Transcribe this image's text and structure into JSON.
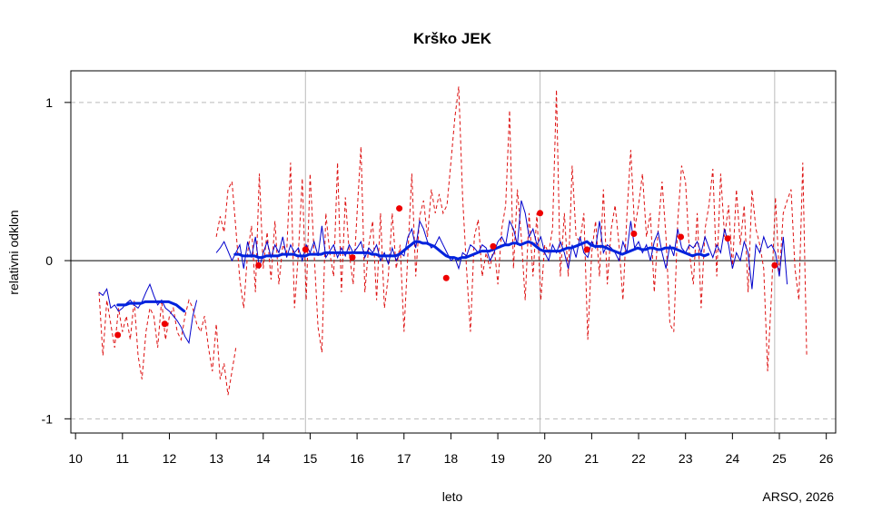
{
  "chart_data": {
    "type": "line",
    "title": "Krško JEK",
    "xlabel": "leto",
    "ylabel": "relativni odklon",
    "credit": "ARSO, 2026",
    "xlim": [
      9.9,
      26.2
    ],
    "ylim": [
      -1.09,
      1.2
    ],
    "x_ticks": [
      10,
      11,
      12,
      13,
      14,
      15,
      16,
      17,
      18,
      19,
      20,
      21,
      22,
      23,
      24,
      25,
      26
    ],
    "y_ticks": [
      -1,
      0,
      1
    ],
    "gridlines_v": [
      14.9,
      19.9,
      24.9
    ],
    "gridlines_h_dashed": [
      -1,
      1
    ],
    "zero_line": 0,
    "colors": {
      "monthly": "#dd1111",
      "smoothed": "#0000cc",
      "moving_avg": "#0022dd",
      "annual": "#ee0000",
      "grid": "#bbbbbb",
      "zero": "#000000"
    },
    "series": [
      {
        "name": "monthly",
        "style": "dashed",
        "segments": [
          {
            "x0": 10.5,
            "dx": 0.0833333,
            "values": [
              -0.2,
              -0.6,
              -0.25,
              -0.4,
              -0.55,
              -0.3,
              -0.45,
              -0.35,
              -0.5,
              -0.25,
              -0.6,
              -0.75,
              -0.45,
              -0.3,
              -0.35,
              -0.55,
              -0.25,
              -0.5,
              -0.35,
              -0.3,
              -0.45,
              -0.5,
              -0.35,
              -0.25,
              -0.3,
              -0.4,
              -0.45,
              -0.35,
              -0.55,
              -0.7,
              -0.4,
              -0.75,
              -0.65,
              -0.85,
              -0.7,
              -0.55
            ]
          },
          {
            "x0": 13.0,
            "dx": 0.0833333,
            "values": [
              0.15,
              0.28,
              0.18,
              0.45,
              0.5,
              0.2,
              -0.12,
              -0.3,
              0.05,
              0.22,
              -0.2,
              0.55,
              -0.05,
              0.18,
              -0.12,
              0.25,
              -0.15,
              0.1,
              0.05,
              0.62,
              -0.3,
              0.05,
              0.52,
              -0.25,
              0.55,
              0.05,
              -0.42,
              -0.58,
              0.3,
              0.05,
              -0.1,
              0.62,
              -0.2,
              0.4,
              0.05,
              -0.15,
              0.3,
              0.72,
              -0.2,
              0.1,
              0.25,
              -0.25,
              0.3,
              -0.3,
              -0.1,
              0.3,
              -0.05,
              0.1,
              -0.45,
              0.05,
              0.55,
              -0.1,
              0.28,
              0.38,
              0.15,
              0.45,
              0.3,
              0.42,
              0.3,
              0.35,
              0.62,
              0.9,
              1.1,
              0.4,
              -0.05,
              -0.45,
              0.15,
              0.26,
              -0.1,
              0.05,
              -0.05,
              0.1,
              -0.15,
              0.2,
              0.35,
              0.95,
              -0.05,
              0.45,
              0.15,
              -0.25,
              0.3,
              -0.1,
              0.3,
              -0.25,
              0.1,
              0.05,
              0.2,
              1.08,
              -0.1,
              0.3,
              -0.1,
              0.6,
              0.15,
              0.12,
              0.3,
              -0.5,
              0.05,
              0.25,
              -0.1,
              0.45,
              -0.15,
              0.2,
              0.35,
              0.1,
              -0.25,
              0.28,
              0.7,
              0.2,
              0.35,
              0.55,
              0.15,
              0.3,
              -0.2,
              0.2,
              0.5,
              0.15,
              -0.4,
              -0.45,
              0.25,
              0.6,
              0.5,
              0.05,
              -0.15,
              0.3,
              -0.3,
              0.2,
              0.35,
              0.58,
              -0.1,
              0.55,
              0.15,
              0.35,
              -0.05,
              0.45,
              0.1,
              0.35,
              -0.2,
              0.45,
              0.2,
              0.1,
              -0.05,
              -0.7,
              -0.2,
              0.4,
              -0.1,
              0.3,
              0.38,
              0.45,
              -0.05,
              -0.25,
              0.62,
              -0.6
            ]
          }
        ]
      },
      {
        "name": "smoothed",
        "style": "solid-thin",
        "segments": [
          {
            "x0": 10.5,
            "dx": 0.0833333,
            "values": [
              -0.2,
              -0.22,
              -0.18,
              -0.3,
              -0.28,
              -0.32,
              -0.3,
              -0.27,
              -0.25,
              -0.28,
              -0.3,
              -0.26,
              -0.2,
              -0.15,
              -0.22,
              -0.28,
              -0.25,
              -0.3,
              -0.32,
              -0.35,
              -0.38,
              -0.42,
              -0.48,
              -0.52,
              -0.35,
              -0.25
            ]
          },
          {
            "x0": 13.0,
            "dx": 0.0833333,
            "values": [
              0.05,
              0.08,
              0.12,
              0.06,
              0.0,
              0.05,
              0.1,
              -0.05,
              0.12,
              0.02,
              0.15,
              -0.05,
              0.05,
              0.12,
              0.02,
              0.1,
              0.05,
              0.15,
              0.02,
              0.1,
              0.05,
              0.08,
              0.0,
              0.1,
              0.05,
              0.12,
              0.03,
              0.22,
              0.02,
              0.06,
              0.1,
              0.02,
              0.08,
              0.03,
              0.1,
              0.05,
              0.08,
              0.12,
              0.02,
              0.08,
              0.05,
              0.1,
              0.0,
              0.05,
              -0.02,
              0.08,
              0.0,
              0.05,
              0.03,
              0.15,
              0.2,
              0.08,
              0.25,
              0.2,
              0.12,
              0.08,
              0.1,
              0.15,
              0.1,
              0.05,
              0.0,
              0.02,
              -0.05,
              0.05,
              0.03,
              0.1,
              0.08,
              0.05,
              0.1,
              0.08,
              0.0,
              0.05,
              0.12,
              0.15,
              0.1,
              0.25,
              0.2,
              0.1,
              0.38,
              0.3,
              0.15,
              0.2,
              0.1,
              0.15,
              0.05,
              0.0,
              0.1,
              0.05,
              0.12,
              0.05,
              -0.05,
              0.1,
              0.02,
              0.15,
              0.05,
              0.02,
              0.12,
              0.08,
              0.25,
              0.05,
              0.1,
              0.08,
              0.05,
              0.0,
              0.12,
              0.05,
              0.25,
              0.08,
              0.12,
              0.05,
              0.1,
              0.0,
              0.12,
              0.18,
              0.05,
              -0.05,
              0.1,
              0.03,
              0.2,
              0.08,
              0.05,
              0.1,
              0.08,
              0.12,
              0.05,
              0.15,
              0.08,
              0.02,
              0.1,
              0.05,
              0.2,
              0.1,
              -0.05,
              0.05,
              0.0,
              0.12,
              0.05,
              -0.18,
              0.1,
              0.05,
              0.15,
              0.08,
              0.1,
              0.05,
              -0.1,
              0.15,
              -0.15
            ]
          }
        ]
      },
      {
        "name": "moving_avg",
        "style": "solid-thick",
        "segments": [
          {
            "x0": 10.9,
            "dx": 0.0833333,
            "values": [
              -0.28,
              -0.28,
              -0.28,
              -0.27,
              -0.27,
              -0.27,
              -0.27,
              -0.26,
              -0.26,
              -0.26,
              -0.26,
              -0.26,
              -0.26,
              -0.26,
              -0.27,
              -0.28,
              -0.3,
              -0.32
            ]
          },
          {
            "x0": 13.4,
            "dx": 0.0833333,
            "values": [
              0.04,
              0.04,
              0.03,
              0.03,
              0.03,
              0.03,
              0.02,
              0.02,
              0.03,
              0.03,
              0.03,
              0.03,
              0.04,
              0.04,
              0.04,
              0.04,
              0.03,
              0.03,
              0.03,
              0.04,
              0.04,
              0.04,
              0.04,
              0.05,
              0.05,
              0.05,
              0.05,
              0.05,
              0.05,
              0.05,
              0.05,
              0.05,
              0.05,
              0.05,
              0.05,
              0.04,
              0.04,
              0.03,
              0.03,
              0.03,
              0.03,
              0.03,
              0.04,
              0.06,
              0.08,
              0.1,
              0.12,
              0.12,
              0.11,
              0.11,
              0.1,
              0.09,
              0.07,
              0.05,
              0.03,
              0.02,
              0.02,
              0.01,
              0.02,
              0.02,
              0.03,
              0.04,
              0.05,
              0.06,
              0.06,
              0.06,
              0.07,
              0.08,
              0.09,
              0.1,
              0.1,
              0.11,
              0.11,
              0.1,
              0.11,
              0.12,
              0.11,
              0.09,
              0.07,
              0.06,
              0.06,
              0.06,
              0.06,
              0.06,
              0.07,
              0.08,
              0.08,
              0.09,
              0.1,
              0.11,
              0.12,
              0.1,
              0.09,
              0.09,
              0.09,
              0.08,
              0.07,
              0.06,
              0.05,
              0.04,
              0.05,
              0.06,
              0.07,
              0.08,
              0.07,
              0.07,
              0.08,
              0.08,
              0.07,
              0.07,
              0.08,
              0.08,
              0.08,
              0.07,
              0.06,
              0.05,
              0.04,
              0.03,
              0.04,
              0.04,
              0.03,
              0.04
            ]
          }
        ]
      }
    ],
    "annual_points": [
      {
        "x": 10.9,
        "y": -0.47
      },
      {
        "x": 11.9,
        "y": -0.4
      },
      {
        "x": 13.9,
        "y": -0.03
      },
      {
        "x": 14.9,
        "y": 0.07
      },
      {
        "x": 15.9,
        "y": 0.02
      },
      {
        "x": 16.9,
        "y": 0.33
      },
      {
        "x": 17.9,
        "y": -0.11
      },
      {
        "x": 18.9,
        "y": 0.09
      },
      {
        "x": 19.9,
        "y": 0.3
      },
      {
        "x": 20.9,
        "y": 0.07
      },
      {
        "x": 21.9,
        "y": 0.17
      },
      {
        "x": 22.9,
        "y": 0.15
      },
      {
        "x": 23.9,
        "y": 0.14
      },
      {
        "x": 24.9,
        "y": -0.03
      }
    ]
  }
}
